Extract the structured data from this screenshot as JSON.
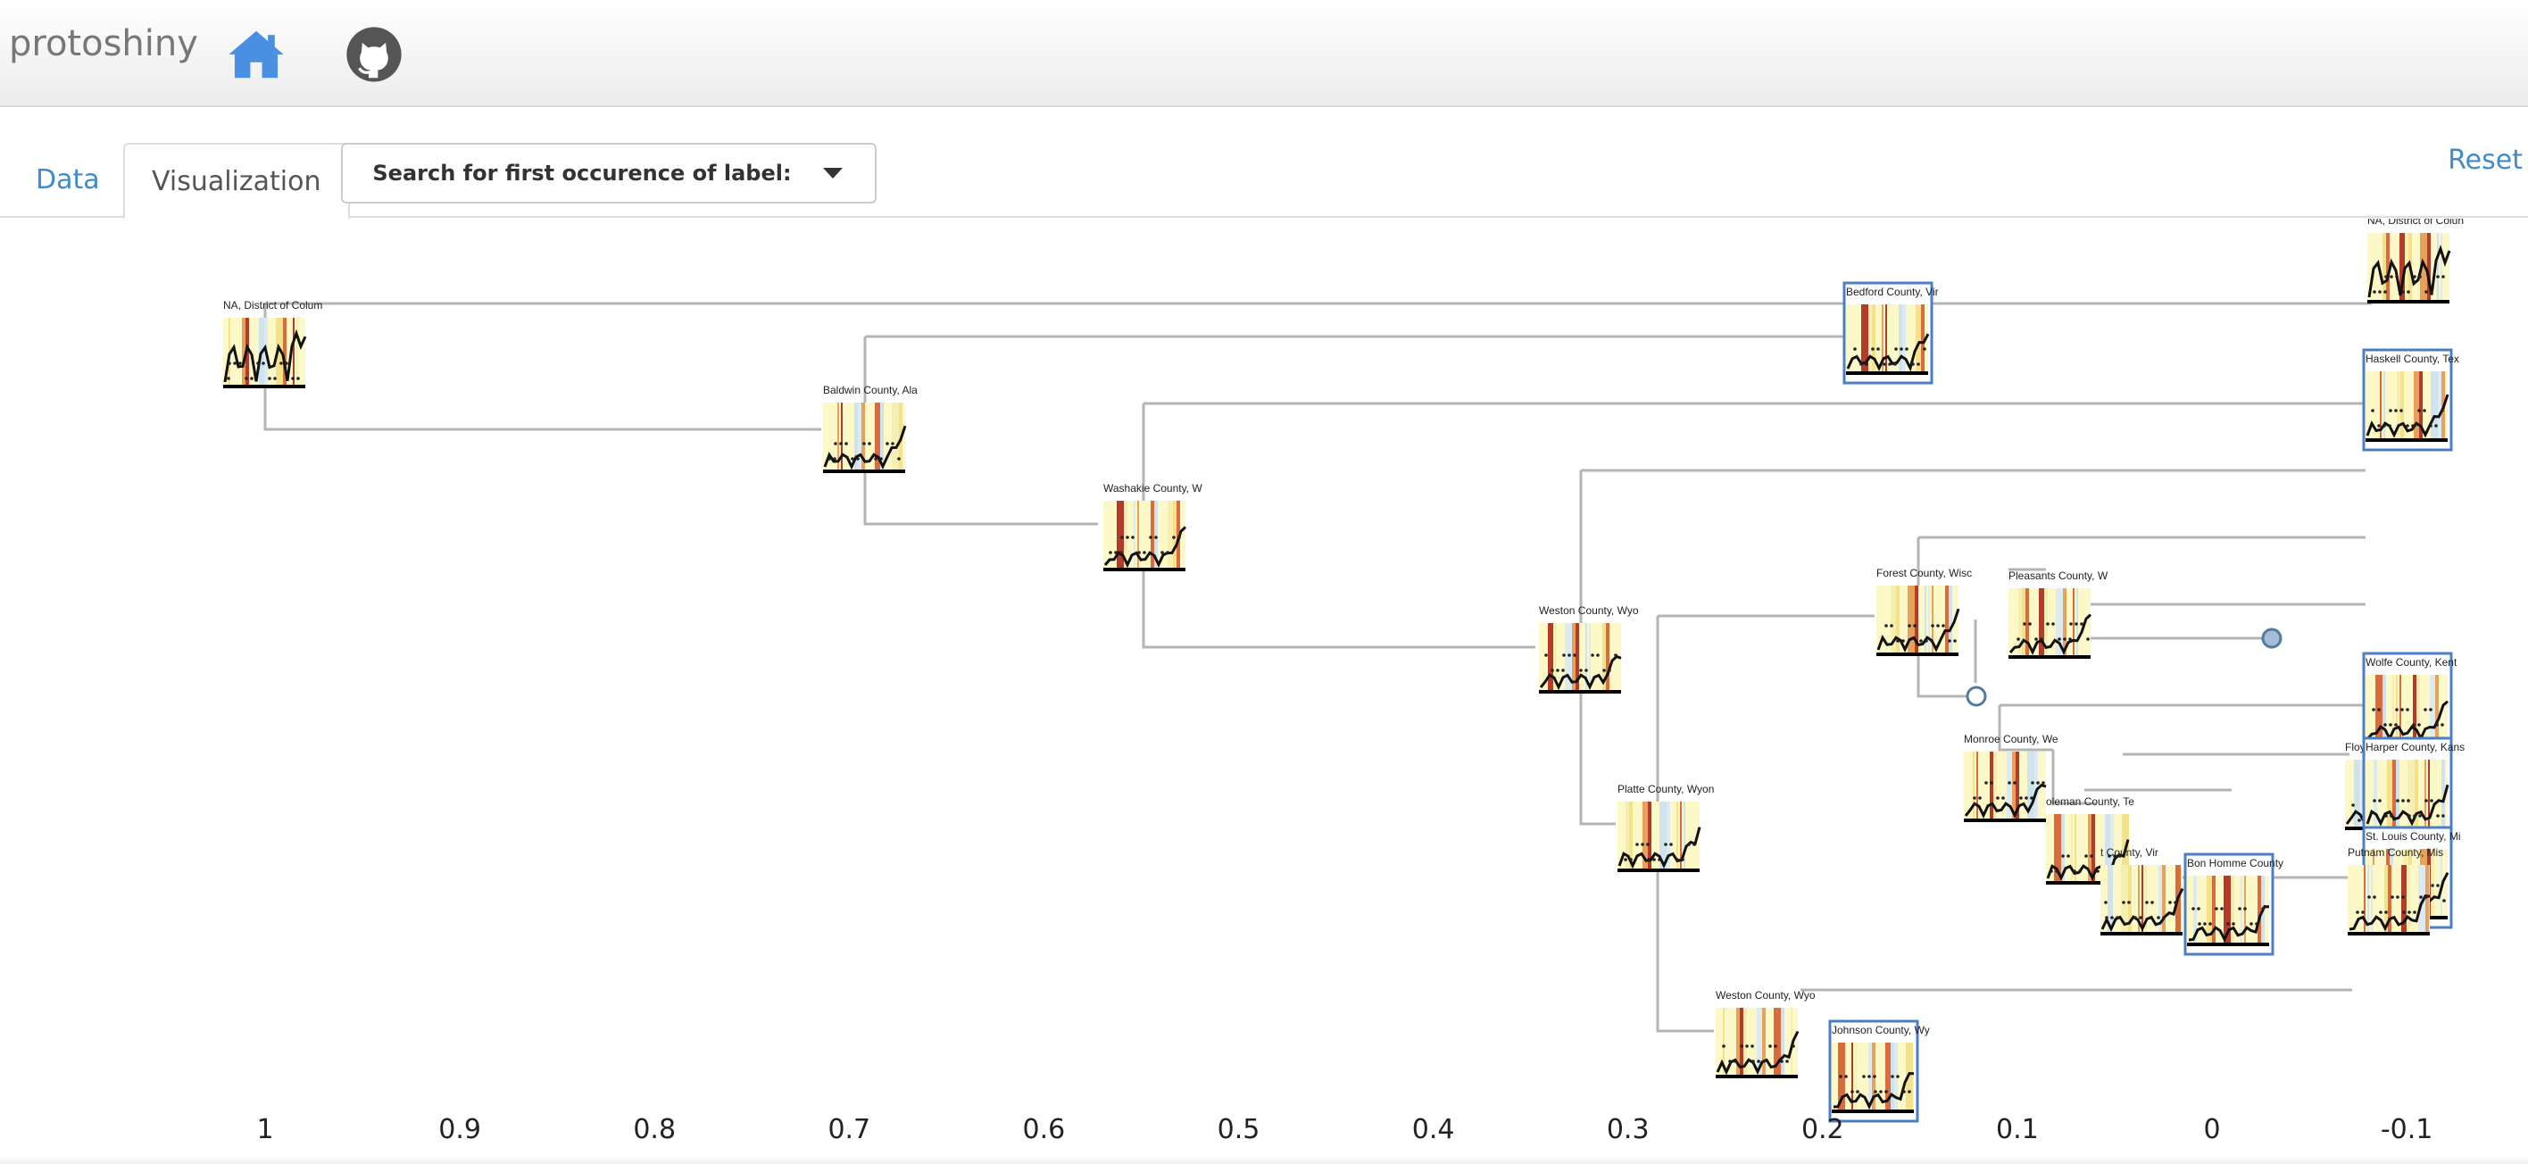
{
  "navbar": {
    "brand": "protoshiny",
    "home_icon": "home-icon",
    "github_icon": "github-icon",
    "accent": "#4a90e2"
  },
  "tabs": [
    {
      "label": "Data",
      "active": false
    },
    {
      "label": "Visualization",
      "active": true
    }
  ],
  "search": {
    "label": "Search for first occurence of label:"
  },
  "reset_label": "Reset",
  "axis_ticks": [
    {
      "value": 1,
      "label": "1"
    },
    {
      "value": 0.9,
      "label": "0.9"
    },
    {
      "value": 0.8,
      "label": "0.8"
    },
    {
      "value": 0.7,
      "label": "0.7"
    },
    {
      "value": 0.6,
      "label": "0.6"
    },
    {
      "value": 0.5,
      "label": "0.5"
    },
    {
      "value": 0.4,
      "label": "0.4"
    },
    {
      "value": 0.3,
      "label": "0.3"
    },
    {
      "value": 0.2,
      "label": "0.2"
    },
    {
      "value": 0.1,
      "label": "0.1"
    },
    {
      "value": 0,
      "label": "0"
    },
    {
      "value": -0.1,
      "label": "-0.1"
    }
  ],
  "tree_nodes": [
    {
      "label": "NA, District of Colum",
      "height": 1.0,
      "boxed": false
    },
    {
      "label": "Baldwin County, Ala",
      "height": 0.69,
      "boxed": false
    },
    {
      "label": "Washakie County, W",
      "height": 0.55,
      "boxed": false
    },
    {
      "label": "Weston County, Wyo",
      "height": 0.29,
      "boxed": false
    },
    {
      "label": "Platte County, Wyon",
      "height": 0.265,
      "boxed": false
    },
    {
      "label": "Weston County, Wyo",
      "height": 0.21,
      "boxed": false
    },
    {
      "label": "Johnson County, Wy",
      "height": 0.19,
      "boxed": true
    },
    {
      "label": "Bedford County, Vir",
      "height": 0.18,
      "boxed": true
    },
    {
      "label": "Forest County, Wisc",
      "height": 0.14,
      "boxed": false
    },
    {
      "label": "Pleasants County, W",
      "height": 0.09,
      "boxed": false
    },
    {
      "label": "Monroe County, We",
      "height": 0.11,
      "boxed": false
    },
    {
      "label": "oleman County, Te",
      "height": 0.07,
      "boxed": false
    },
    {
      "label": "t County, Vir",
      "height": 0.04,
      "boxed": false
    },
    {
      "label": "Bon Homme County",
      "height": 0.0,
      "boxed": true
    },
    {
      "label": "NA, District of Colun",
      "height": -0.1,
      "boxed": false
    },
    {
      "label": "Haskell County, Tex",
      "height": -0.1,
      "boxed": true
    },
    {
      "label": "Wolfe County, Kent",
      "height": -0.1,
      "boxed": true
    },
    {
      "label": "Floyd County, Texas",
      "height": -0.09,
      "boxed": false
    },
    {
      "label": "Harper County, Kans",
      "height": -0.1,
      "boxed": true
    },
    {
      "label": "St. Louis County, Mi",
      "height": -0.1,
      "boxed": true
    },
    {
      "label": "Putnam County, Mis",
      "height": -0.09,
      "boxed": false
    }
  ]
}
